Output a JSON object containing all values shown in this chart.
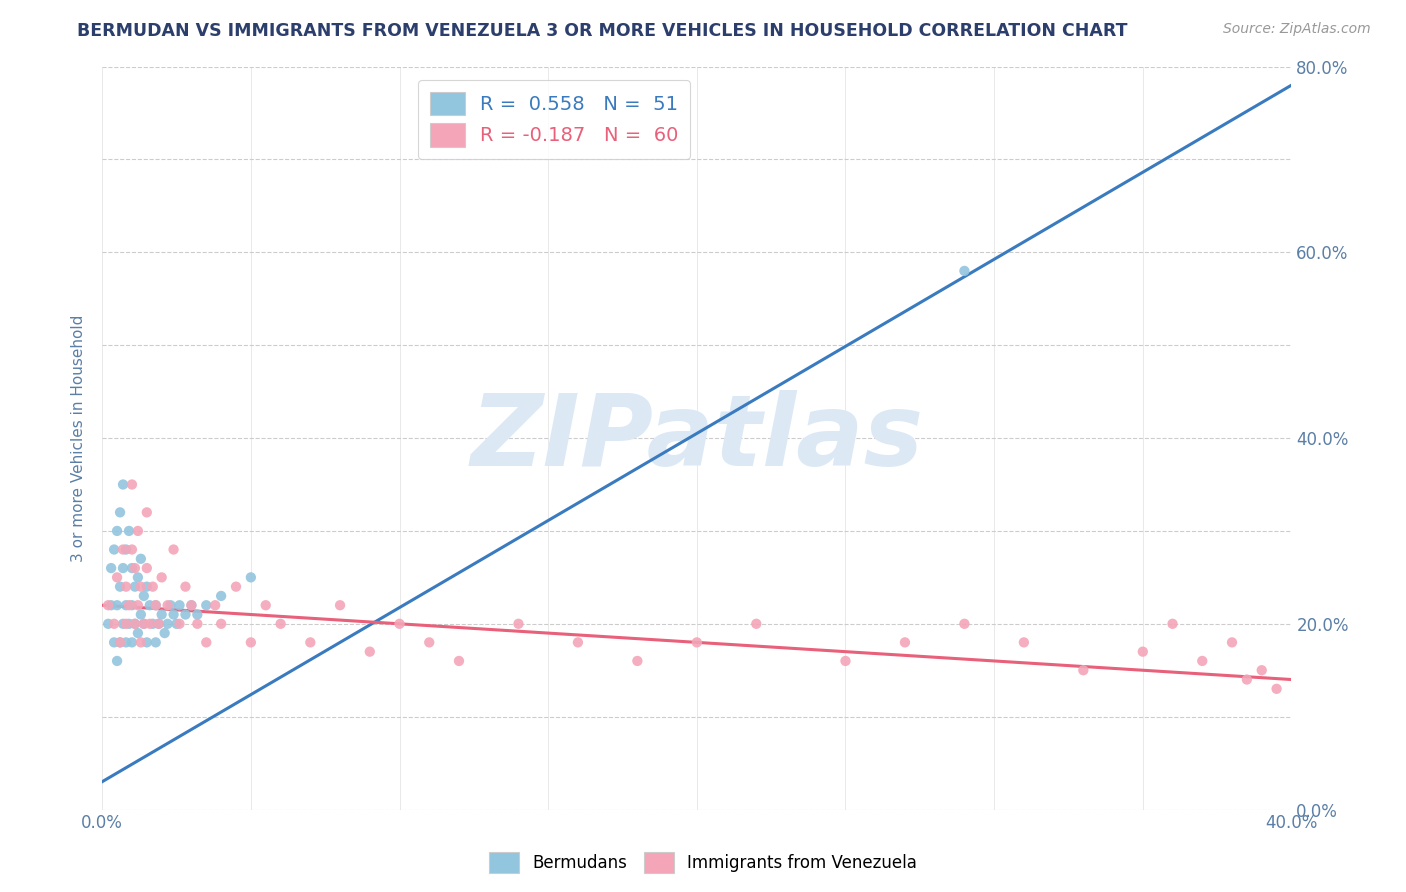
{
  "title": "BERMUDAN VS IMMIGRANTS FROM VENEZUELA 3 OR MORE VEHICLES IN HOUSEHOLD CORRELATION CHART",
  "source_text": "Source: ZipAtlas.com",
  "ylabel": "3 or more Vehicles in Household",
  "watermark": "ZIPatlas",
  "xlim": [
    0.0,
    0.4
  ],
  "ylim": [
    0.0,
    0.8
  ],
  "blue_R": 0.558,
  "blue_N": 51,
  "pink_R": -0.187,
  "pink_N": 60,
  "blue_color": "#92c5de",
  "pink_color": "#f4a5b8",
  "blue_line_color": "#3a7bbf",
  "pink_line_color": "#e8607a",
  "background_color": "#ffffff",
  "grid_color": "#cccccc",
  "title_color": "#2c3e6b",
  "watermark_color": "#dce9f5",
  "blue_points_x": [
    0.002,
    0.003,
    0.003,
    0.004,
    0.004,
    0.005,
    0.005,
    0.005,
    0.006,
    0.006,
    0.006,
    0.007,
    0.007,
    0.007,
    0.008,
    0.008,
    0.008,
    0.009,
    0.009,
    0.01,
    0.01,
    0.01,
    0.011,
    0.011,
    0.012,
    0.012,
    0.013,
    0.013,
    0.014,
    0.014,
    0.015,
    0.015,
    0.016,
    0.017,
    0.018,
    0.018,
    0.019,
    0.02,
    0.021,
    0.022,
    0.023,
    0.024,
    0.025,
    0.026,
    0.028,
    0.03,
    0.032,
    0.035,
    0.04,
    0.05,
    0.29
  ],
  "blue_points_y": [
    0.2,
    0.22,
    0.26,
    0.18,
    0.28,
    0.16,
    0.22,
    0.3,
    0.18,
    0.24,
    0.32,
    0.2,
    0.26,
    0.35,
    0.18,
    0.22,
    0.28,
    0.2,
    0.3,
    0.18,
    0.22,
    0.26,
    0.2,
    0.24,
    0.19,
    0.25,
    0.21,
    0.27,
    0.2,
    0.23,
    0.18,
    0.24,
    0.22,
    0.2,
    0.18,
    0.22,
    0.2,
    0.21,
    0.19,
    0.2,
    0.22,
    0.21,
    0.2,
    0.22,
    0.21,
    0.22,
    0.21,
    0.22,
    0.23,
    0.25,
    0.58
  ],
  "pink_points_x": [
    0.002,
    0.004,
    0.005,
    0.006,
    0.007,
    0.008,
    0.008,
    0.009,
    0.01,
    0.01,
    0.011,
    0.011,
    0.012,
    0.012,
    0.013,
    0.013,
    0.014,
    0.015,
    0.015,
    0.016,
    0.017,
    0.018,
    0.019,
    0.02,
    0.022,
    0.024,
    0.026,
    0.028,
    0.03,
    0.032,
    0.035,
    0.038,
    0.04,
    0.045,
    0.05,
    0.055,
    0.06,
    0.07,
    0.08,
    0.09,
    0.1,
    0.11,
    0.12,
    0.14,
    0.16,
    0.18,
    0.2,
    0.22,
    0.25,
    0.27,
    0.29,
    0.31,
    0.33,
    0.35,
    0.36,
    0.37,
    0.38,
    0.385,
    0.39,
    0.395
  ],
  "pink_points_y": [
    0.22,
    0.2,
    0.25,
    0.18,
    0.28,
    0.2,
    0.24,
    0.22,
    0.35,
    0.28,
    0.2,
    0.26,
    0.22,
    0.3,
    0.18,
    0.24,
    0.2,
    0.26,
    0.32,
    0.2,
    0.24,
    0.22,
    0.2,
    0.25,
    0.22,
    0.28,
    0.2,
    0.24,
    0.22,
    0.2,
    0.18,
    0.22,
    0.2,
    0.24,
    0.18,
    0.22,
    0.2,
    0.18,
    0.22,
    0.17,
    0.2,
    0.18,
    0.16,
    0.2,
    0.18,
    0.16,
    0.18,
    0.2,
    0.16,
    0.18,
    0.2,
    0.18,
    0.15,
    0.17,
    0.2,
    0.16,
    0.18,
    0.14,
    0.15,
    0.13
  ],
  "blue_line_x": [
    0.0,
    0.4
  ],
  "blue_line_y": [
    0.03,
    0.78
  ],
  "pink_line_x": [
    0.0,
    0.4
  ],
  "pink_line_y": [
    0.22,
    0.14
  ]
}
